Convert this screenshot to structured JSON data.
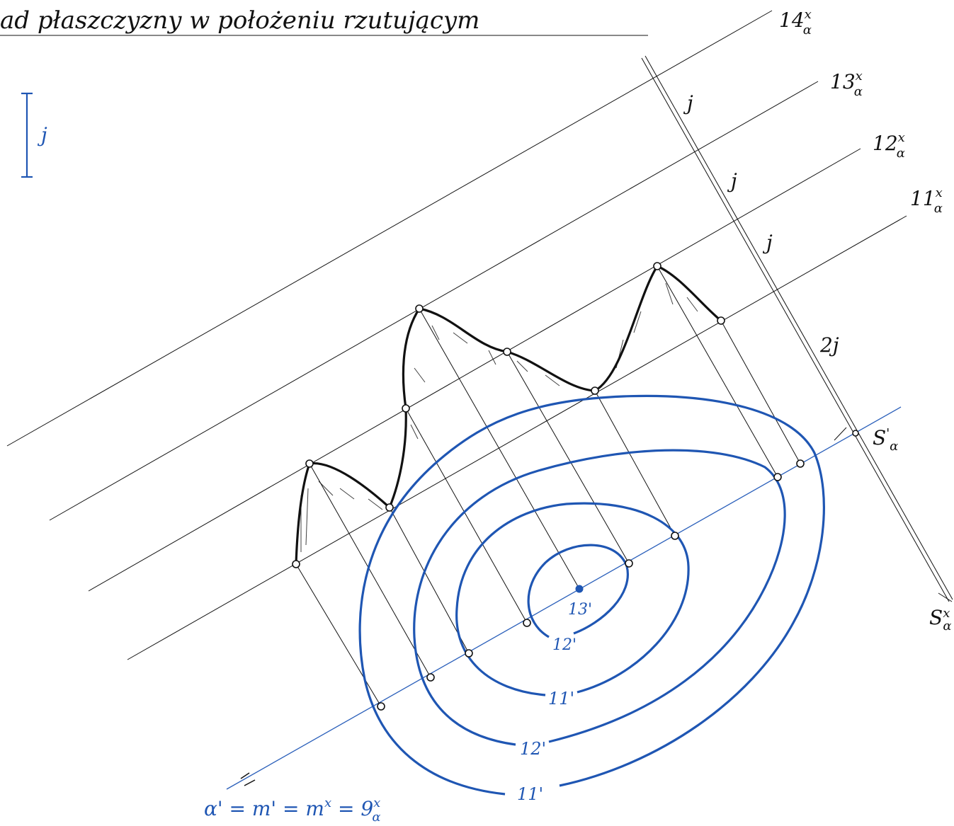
{
  "title": "ad płaszczyzny w położeniu rzutującym",
  "scale_label": "j",
  "level_lines": [
    {
      "main": "14",
      "sup": "x",
      "sub": "α"
    },
    {
      "main": "13",
      "sup": "x",
      "sub": "α"
    },
    {
      "main": "12",
      "sup": "x",
      "sub": "α"
    },
    {
      "main": "11",
      "sup": "x",
      "sub": "α"
    }
  ],
  "interval_labels": [
    "j",
    "j",
    "j",
    "2j"
  ],
  "s_prime": {
    "main": "S",
    "sup": "'",
    "sub": "α"
  },
  "s_x": {
    "main": "S",
    "sup": "x",
    "sub": "α"
  },
  "contour_labels": [
    "13'",
    "12'",
    "11'",
    "12'",
    "11'"
  ],
  "formula": {
    "text1": "α' = m' = m",
    "sup1": "x",
    "text2": " = 9",
    "sup2": "x",
    "sub2": "α"
  }
}
